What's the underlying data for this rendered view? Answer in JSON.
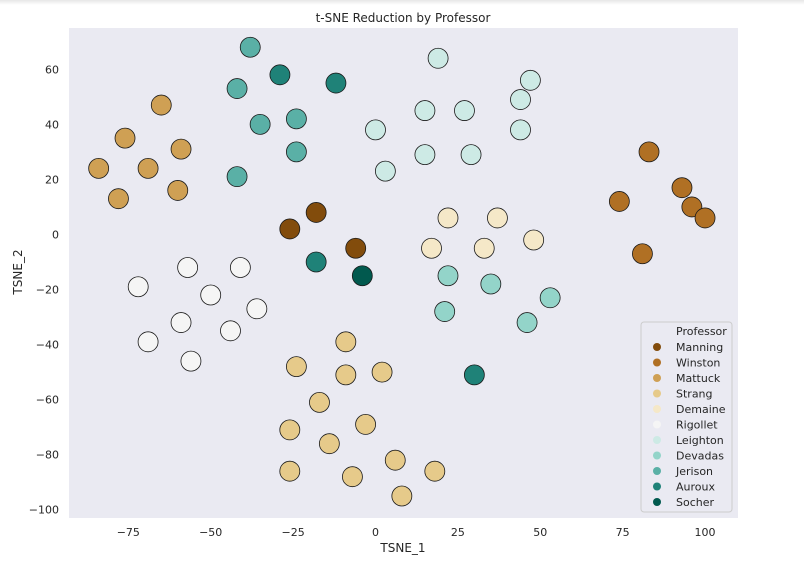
{
  "chart_data": {
    "type": "scatter",
    "title": "t-SNE Reduction by Professor",
    "xlabel": "TSNE_1",
    "ylabel": "TSNE_2",
    "xlim": [
      -93,
      110
    ],
    "ylim": [
      -103,
      75
    ],
    "xticks": [
      -75,
      -50,
      -25,
      0,
      25,
      50,
      75,
      100
    ],
    "yticks": [
      -100,
      -80,
      -60,
      -40,
      -20,
      0,
      20,
      40,
      60
    ],
    "grid": false,
    "background": "#eaeaf2",
    "legend": {
      "title": "Professor",
      "placement": "lower-right"
    },
    "series": [
      {
        "name": "Manning",
        "color": "#824c0c",
        "points": [
          [
            -26,
            2
          ],
          [
            -18,
            8
          ],
          [
            -6,
            -5
          ]
        ]
      },
      {
        "name": "Winston",
        "color": "#b07024",
        "points": [
          [
            74,
            12
          ],
          [
            81,
            -7
          ],
          [
            83,
            30
          ],
          [
            93,
            17
          ],
          [
            96,
            10
          ],
          [
            100,
            6
          ]
        ]
      },
      {
        "name": "Mattuck",
        "color": "#cfa054",
        "points": [
          [
            -84,
            24
          ],
          [
            -76,
            35
          ],
          [
            -78,
            13
          ],
          [
            -69,
            24
          ],
          [
            -65,
            47
          ],
          [
            -59,
            31
          ],
          [
            -60,
            16
          ]
        ]
      },
      {
        "name": "Strang",
        "color": "#e6ca8a",
        "points": [
          [
            -9,
            -39
          ],
          [
            -24,
            -48
          ],
          [
            -9,
            -51
          ],
          [
            2,
            -50
          ],
          [
            -17,
            -61
          ],
          [
            -26,
            -71
          ],
          [
            -14,
            -76
          ],
          [
            -3,
            -69
          ],
          [
            -26,
            -86
          ],
          [
            -7,
            -88
          ],
          [
            6,
            -82
          ],
          [
            18,
            -86
          ],
          [
            8,
            -95
          ]
        ]
      },
      {
        "name": "Demaine",
        "color": "#f5e8c8",
        "points": [
          [
            22,
            6
          ],
          [
            37,
            6
          ],
          [
            17,
            -5
          ],
          [
            33,
            -5
          ],
          [
            48,
            -2
          ]
        ]
      },
      {
        "name": "Rigollet",
        "color": "#f5f5f5",
        "points": [
          [
            -72,
            -19
          ],
          [
            -57,
            -12
          ],
          [
            -41,
            -12
          ],
          [
            -50,
            -22
          ],
          [
            -36,
            -27
          ],
          [
            -59,
            -32
          ],
          [
            -44,
            -35
          ],
          [
            -69,
            -39
          ],
          [
            -56,
            -46
          ]
        ]
      },
      {
        "name": "Leighton",
        "color": "#cdeae5",
        "points": [
          [
            19,
            64
          ],
          [
            47,
            56
          ],
          [
            44,
            49
          ],
          [
            27,
            45
          ],
          [
            15,
            45
          ],
          [
            0,
            38
          ],
          [
            44,
            38
          ],
          [
            15,
            29
          ],
          [
            29,
            29
          ],
          [
            3,
            23
          ]
        ]
      },
      {
        "name": "Devadas",
        "color": "#93d4c9",
        "points": [
          [
            22,
            -15
          ],
          [
            35,
            -18
          ],
          [
            53,
            -23
          ],
          [
            21,
            -28
          ],
          [
            46,
            -32
          ]
        ]
      },
      {
        "name": "Jerison",
        "color": "#5ab0a6",
        "points": [
          [
            -38,
            68
          ],
          [
            -42,
            53
          ],
          [
            -35,
            40
          ],
          [
            -24,
            42
          ],
          [
            -24,
            30
          ],
          [
            -42,
            21
          ]
        ]
      },
      {
        "name": "Auroux",
        "color": "#1f8278",
        "points": [
          [
            -29,
            58
          ],
          [
            -12,
            55
          ],
          [
            -18,
            -10
          ],
          [
            30,
            -51
          ]
        ]
      },
      {
        "name": "Socher",
        "color": "#01594e",
        "points": [
          [
            -4,
            -15
          ]
        ]
      }
    ]
  }
}
